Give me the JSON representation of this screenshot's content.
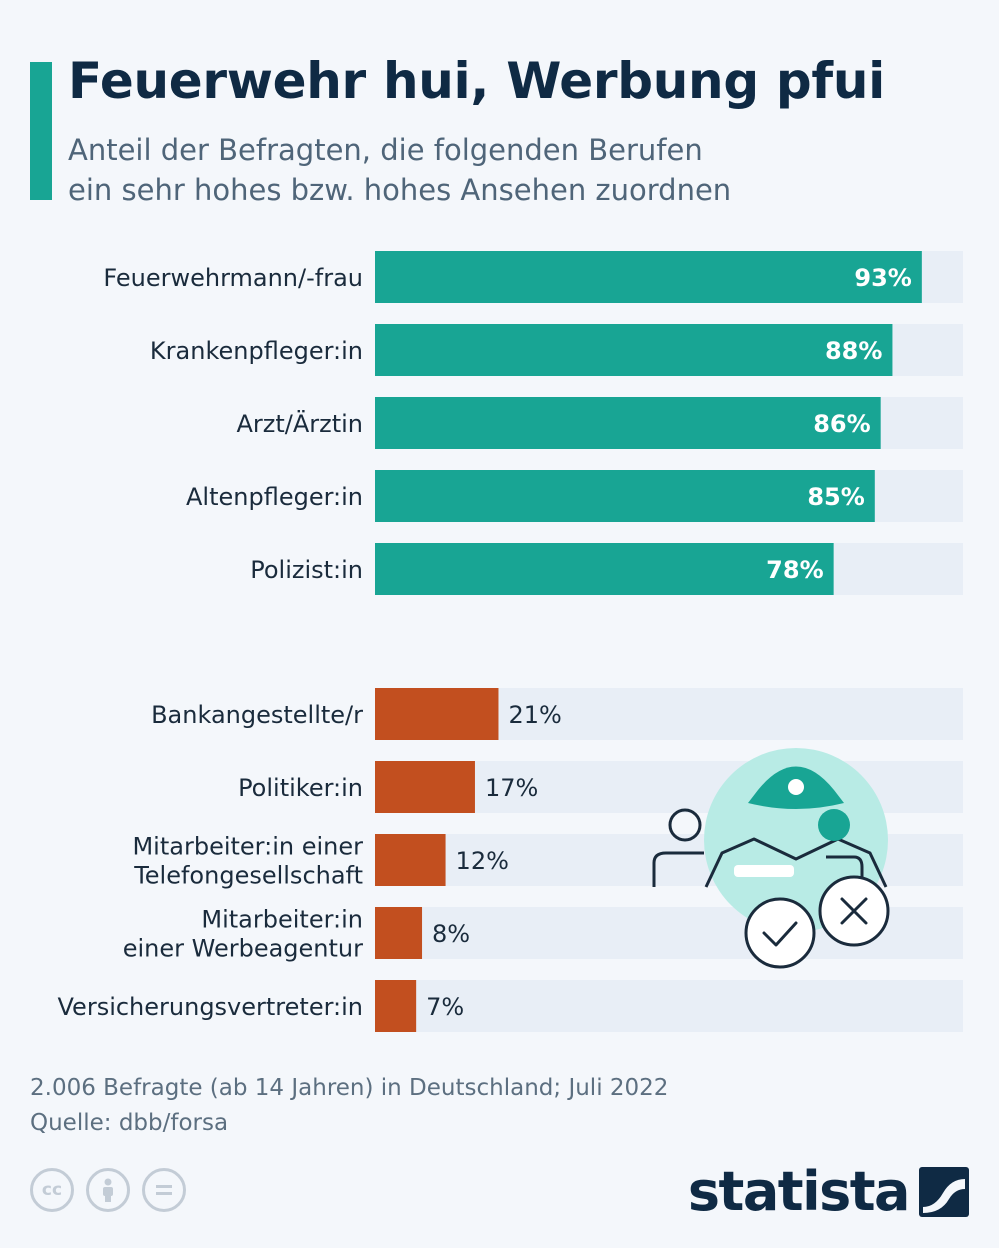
{
  "title": "Feuerwehr hui, Werbung pfui",
  "subtitle_lines": [
    "Anteil der Befragten, die folgenden Berufen",
    "ein sehr hohes bzw. hohes Ansehen zuordnen"
  ],
  "colors": {
    "positive": "#18a594",
    "negative": "#c24f1f",
    "track": "#e8eef6",
    "label": "#1a2b3c"
  },
  "chart_data": {
    "type": "bar",
    "orientation": "horizontal",
    "xlim": [
      0,
      100
    ],
    "unit": "%",
    "groups": [
      {
        "color": "#18a594",
        "items": [
          {
            "label": "Feuerwehrmann/-frau",
            "value": 93,
            "value_label": "93%"
          },
          {
            "label": "Krankenpfleger:in",
            "value": 88,
            "value_label": "88%"
          },
          {
            "label": "Arzt/Ärztin",
            "value": 86,
            "value_label": "86%"
          },
          {
            "label": "Altenpfleger:in",
            "value": 85,
            "value_label": "85%"
          },
          {
            "label": "Polizist:in",
            "value": 78,
            "value_label": "78%"
          }
        ]
      },
      {
        "color": "#c24f1f",
        "items": [
          {
            "label": "Bankangestellte/r",
            "value": 21,
            "value_label": "21%"
          },
          {
            "label": "Politiker:in",
            "value": 17,
            "value_label": "17%"
          },
          {
            "label": "Mitarbeiter:in einer\nTelefongesellschaft",
            "value": 12,
            "value_label": "12%"
          },
          {
            "label": "Mitarbeiter:in\neiner Werbeagentur",
            "value": 8,
            "value_label": "8%"
          },
          {
            "label": "Versicherungsvertreter:in",
            "value": 7,
            "value_label": "7%"
          }
        ]
      }
    ]
  },
  "footer": {
    "note": "2.006 Befragte (ab 14 Jahren) in Deutschland; Juli 2022",
    "source": "Quelle: dbb/forsa"
  },
  "license_icons": [
    "cc-icon",
    "by-icon",
    "nd-icon"
  ],
  "brand": "statista"
}
